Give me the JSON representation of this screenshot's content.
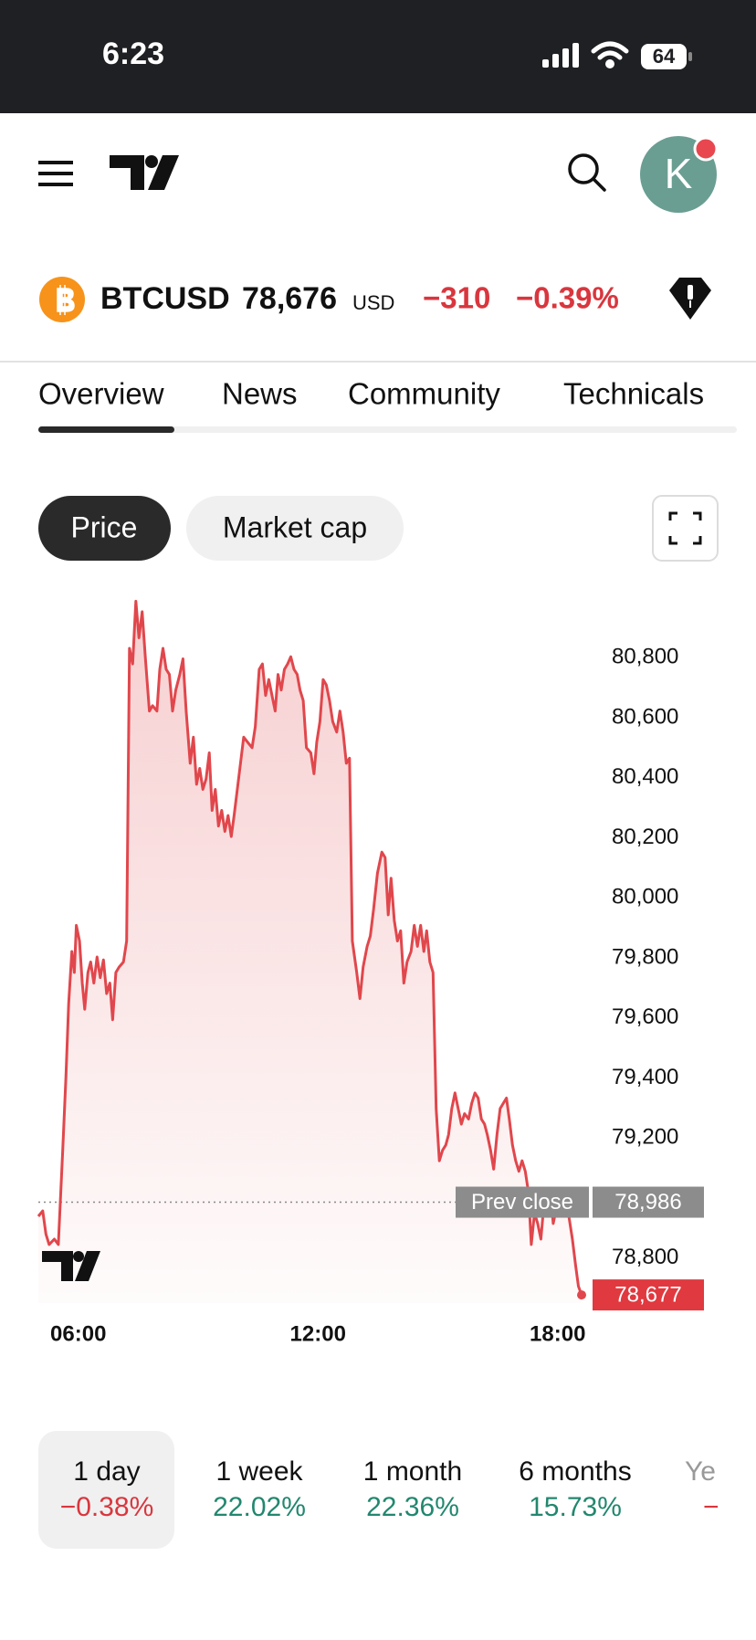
{
  "status_bar": {
    "time": "6:23",
    "battery": "64"
  },
  "header": {
    "avatar_initial": "K"
  },
  "ticker": {
    "symbol": "BTCUSD",
    "price": "78,676",
    "currency": "USD",
    "change": "−310",
    "change_pct": "−0.39%"
  },
  "tabs": [
    "Overview",
    "News",
    "Community",
    "Technicals"
  ],
  "chart_buttons": [
    "Price",
    "Market cap"
  ],
  "chart_data": {
    "type": "line",
    "x": [
      5.0,
      5.11,
      5.19,
      5.27,
      5.4,
      5.5,
      5.61,
      5.69,
      5.76,
      5.84,
      5.9,
      5.95,
      6.03,
      6.1,
      6.16,
      6.24,
      6.31,
      6.39,
      6.47,
      6.55,
      6.63,
      6.71,
      6.79,
      6.86,
      6.94,
      7.02,
      7.13,
      7.21,
      7.28,
      7.36,
      7.44,
      7.52,
      7.6,
      7.68,
      7.78,
      7.86,
      7.97,
      8.04,
      8.12,
      8.2,
      8.28,
      8.36,
      8.44,
      8.54,
      8.62,
      8.7,
      8.8,
      8.88,
      8.96,
      9.04,
      9.12,
      9.2,
      9.28,
      9.35,
      9.43,
      9.51,
      9.59,
      9.67,
      9.75,
      9.83,
      9.9,
      9.98,
      10.06,
      10.14,
      10.24,
      10.35,
      10.43,
      10.53,
      10.61,
      10.69,
      10.77,
      10.85,
      10.93,
      11.0,
      11.08,
      11.16,
      11.24,
      11.32,
      11.4,
      11.48,
      11.55,
      11.63,
      11.71,
      11.82,
      11.9,
      11.97,
      12.05,
      12.13,
      12.21,
      12.29,
      12.37,
      12.47,
      12.55,
      12.63,
      12.71,
      12.79,
      12.86,
      12.97,
      13.05,
      13.13,
      13.23,
      13.31,
      13.39,
      13.49,
      13.6,
      13.68,
      13.76,
      13.83,
      13.91,
      13.99,
      14.07,
      14.15,
      14.23,
      14.33,
      14.41,
      14.49,
      14.57,
      14.65,
      14.72,
      14.8,
      14.88,
      14.96,
      15.04,
      15.12,
      15.2,
      15.27,
      15.35,
      15.43,
      15.51,
      15.59,
      15.67,
      15.77,
      15.85,
      15.93,
      16.01,
      16.09,
      16.17,
      16.24,
      16.32,
      16.4,
      16.48,
      16.56,
      16.64,
      16.72,
      16.79,
      16.87,
      16.95,
      17.03,
      17.11,
      17.19,
      17.27,
      17.34,
      17.42,
      17.5,
      17.58,
      17.66,
      17.74,
      17.82,
      17.89,
      17.97,
      18.05,
      18.13,
      18.21,
      18.29,
      18.37,
      18.45,
      18.52,
      18.6
    ],
    "series": [
      {
        "color": "#e0474c",
        "values": [
          78939,
          78957,
          78880,
          78845,
          78863,
          78845,
          79159,
          79403,
          79647,
          79821,
          79751,
          79908,
          79856,
          79716,
          79629,
          79751,
          79786,
          79716,
          79803,
          79734,
          79793,
          79681,
          79716,
          79594,
          79751,
          79769,
          79786,
          79856,
          80831,
          80779,
          80988,
          80866,
          80953,
          80796,
          80622,
          80640,
          80622,
          80761,
          80831,
          80761,
          80744,
          80622,
          80692,
          80744,
          80796,
          80622,
          80448,
          80535,
          80378,
          80431,
          80361,
          80396,
          80483,
          80291,
          80361,
          80239,
          80291,
          80221,
          80274,
          80204,
          80274,
          80361,
          80448,
          80535,
          80518,
          80500,
          80570,
          80761,
          80779,
          80674,
          80727,
          80674,
          80622,
          80744,
          80692,
          80761,
          80779,
          80803,
          80761,
          80744,
          80692,
          80657,
          80500,
          80483,
          80413,
          80518,
          80587,
          80727,
          80709,
          80657,
          80587,
          80552,
          80622,
          80552,
          80448,
          80465,
          79856,
          79751,
          79664,
          79769,
          79838,
          79873,
          79960,
          80082,
          80152,
          80134,
          79943,
          80065,
          79925,
          79856,
          79890,
          79716,
          79786,
          79821,
          79908,
          79838,
          79908,
          79821,
          79890,
          79786,
          79751,
          79298,
          79124,
          79159,
          79176,
          79211,
          79298,
          79350,
          79298,
          79246,
          79281,
          79263,
          79316,
          79350,
          79333,
          79263,
          79246,
          79211,
          79159,
          79096,
          79211,
          79298,
          79316,
          79333,
          79263,
          79176,
          79124,
          79089,
          79124,
          79089,
          79019,
          78845,
          78950,
          78915,
          78863,
          78985,
          78950,
          79019,
          78915,
          78967,
          78985,
          79002,
          79019,
          78932,
          78863,
          78776,
          78706,
          78677
        ]
      }
    ],
    "xlim": [
      5,
      18.6
    ],
    "xticks": [
      {
        "value": 6,
        "label": "06:00"
      },
      {
        "value": 12,
        "label": "12:00"
      },
      {
        "value": 18,
        "label": "18:00"
      }
    ],
    "ylim": [
      78650,
      81050
    ],
    "yticks": [
      {
        "value": 78800,
        "label": "78,800"
      },
      {
        "value": 79200,
        "label": "79,200"
      },
      {
        "value": 79400,
        "label": "79,400"
      },
      {
        "value": 79600,
        "label": "79,600"
      },
      {
        "value": 79800,
        "label": "79,800"
      },
      {
        "value": 80000,
        "label": "80,000"
      },
      {
        "value": 80200,
        "label": "80,200"
      },
      {
        "value": 80400,
        "label": "80,400"
      },
      {
        "value": 80600,
        "label": "80,600"
      },
      {
        "value": 80800,
        "label": "80,800"
      }
    ],
    "prev_close": {
      "name": "Prev close",
      "value": 78986,
      "label": "78,986"
    },
    "last_price": {
      "value": 78677,
      "label": "78,677"
    },
    "grid": false
  },
  "periods": [
    {
      "label": "1 day",
      "change": "−0.38%",
      "color": "#d9363e"
    },
    {
      "label": "1 week",
      "change": "22.02%",
      "color": "#22876f"
    },
    {
      "label": "1 month",
      "change": "22.36%",
      "color": "#22876f"
    },
    {
      "label": "6 months",
      "change": "15.73%",
      "color": "#22876f"
    },
    {
      "label": "Ye",
      "change": "−",
      "color": "#d9363e"
    }
  ]
}
